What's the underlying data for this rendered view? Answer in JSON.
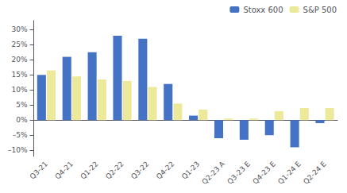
{
  "chart_data": {
    "type": "bar",
    "categories": [
      "Q3-21",
      "Q4-21",
      "Q1-22",
      "Q2-22",
      "Q3-22",
      "Q4-22",
      "Q1-23",
      "Q2-23 A",
      "Q3-23 E",
      "Q4-23 E",
      "Q1-24 E",
      "Q2-24 E"
    ],
    "series": [
      {
        "name": "Stoxx 600",
        "color": "#4472C4",
        "values": [
          15,
          21,
          22.5,
          28,
          27,
          12,
          1.5,
          -6,
          -6.5,
          -5,
          -9,
          -1
        ]
      },
      {
        "name": "S&P 500",
        "color": "#EDE99A",
        "values": [
          16.5,
          14.5,
          13.5,
          13,
          11,
          5.5,
          3.5,
          0.5,
          0.5,
          3,
          4,
          4
        ]
      }
    ],
    "ylim": [
      -12,
      33
    ],
    "yticks": [
      {
        "value": -10,
        "label": "–10%"
      },
      {
        "value": -5,
        "label": "–5%"
      },
      {
        "value": 0,
        "label": "0%"
      },
      {
        "value": 5,
        "label": "5%"
      },
      {
        "value": 10,
        "label": "10%"
      },
      {
        "value": 15,
        "label": "15%"
      },
      {
        "value": 20,
        "label": "20%"
      },
      {
        "value": 25,
        "label": "25%"
      },
      {
        "value": 30,
        "label": "30%"
      }
    ],
    "grid": false,
    "legend": "upper right"
  }
}
